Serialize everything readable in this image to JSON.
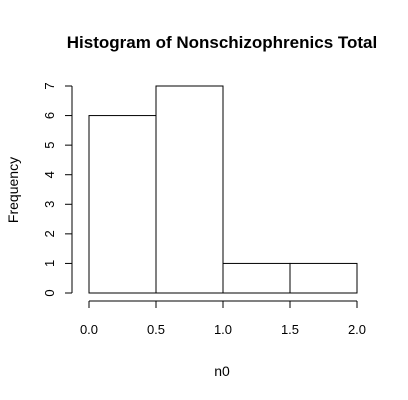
{
  "chart_data": {
    "type": "bar",
    "title": "Histogram of Nonschizophrenics Total",
    "xlabel": "n0",
    "ylabel": "Frequency",
    "bins": [
      {
        "start": 0.0,
        "end": 0.5,
        "count": 6
      },
      {
        "start": 0.5,
        "end": 1.0,
        "count": 7
      },
      {
        "start": 1.0,
        "end": 1.5,
        "count": 1
      },
      {
        "start": 1.5,
        "end": 2.0,
        "count": 1
      }
    ],
    "xlim": [
      0.0,
      2.0
    ],
    "ylim": [
      0,
      7
    ],
    "x_ticks": [
      "0.0",
      "0.5",
      "1.0",
      "1.5",
      "2.0"
    ],
    "y_ticks": [
      "0",
      "1",
      "2",
      "3",
      "4",
      "5",
      "6",
      "7"
    ],
    "grid": false,
    "bar_fill": "#ffffff",
    "bar_stroke": "#000000"
  }
}
